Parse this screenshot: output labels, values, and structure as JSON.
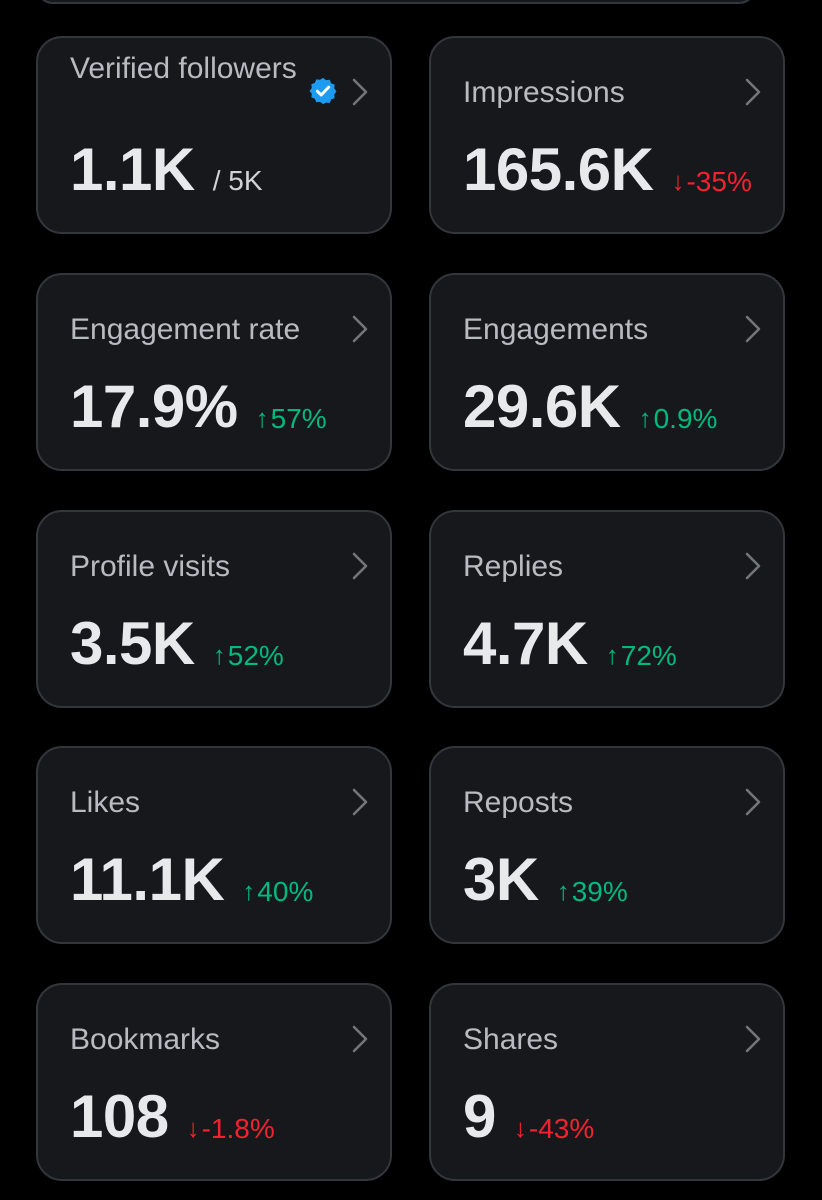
{
  "colors": {
    "background": "#000000",
    "card": "#16181c",
    "border": "#33363b",
    "up": "#00ba7c",
    "down": "#f4212e",
    "verified": "#1d9bf0"
  },
  "cards": [
    {
      "title": "Verified followers",
      "value": "1.1K",
      "denominator": "/ 5K",
      "icon": "verified-badge-icon"
    },
    {
      "title": "Impressions",
      "value": "165.6K",
      "arrow": "↓",
      "change": "-35%",
      "direction": "down"
    },
    {
      "title": "Engagement rate",
      "value": "17.9%",
      "arrow": "↑",
      "change": "57%",
      "direction": "up"
    },
    {
      "title": "Engagements",
      "value": "29.6K",
      "arrow": "↑",
      "change": "0.9%",
      "direction": "up"
    },
    {
      "title": "Profile visits",
      "value": "3.5K",
      "arrow": "↑",
      "change": "52%",
      "direction": "up"
    },
    {
      "title": "Replies",
      "value": "4.7K",
      "arrow": "↑",
      "change": "72%",
      "direction": "up"
    },
    {
      "title": "Likes",
      "value": "11.1K",
      "arrow": "↑",
      "change": "40%",
      "direction": "up"
    },
    {
      "title": "Reposts",
      "value": "3K",
      "arrow": "↑",
      "change": "39%",
      "direction": "up"
    },
    {
      "title": "Bookmarks",
      "value": "108",
      "arrow": "↓",
      "change": "-1.8%",
      "direction": "down"
    },
    {
      "title": "Shares",
      "value": "9",
      "arrow": "↓",
      "change": "-43%",
      "direction": "down"
    }
  ]
}
